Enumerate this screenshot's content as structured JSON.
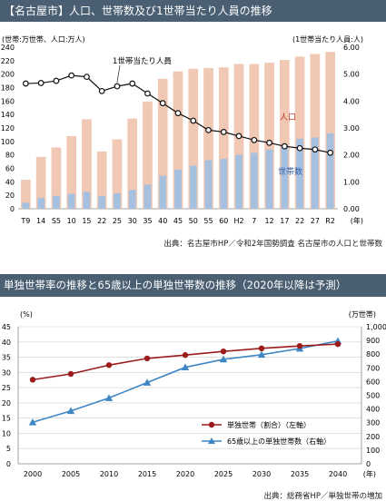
{
  "chart_data": [
    {
      "type": "bar",
      "title": "【名古屋市】人口、世帯数及び1世帯当たり人員の推移",
      "left_unit": "(世帯:万世帯、人口:万人)",
      "right_unit": "(1世帯当たり人員:人)",
      "x_unit": "(年)",
      "categories": [
        "T9",
        "14",
        "S5",
        "10",
        "15",
        "22",
        "25",
        "30",
        "35",
        "40",
        "45",
        "50",
        "55",
        "60",
        "H2",
        "7",
        "12",
        "17",
        "22",
        "27",
        "R2"
      ],
      "left_ylim": [
        0,
        240
      ],
      "left_ticks": [
        "0",
        "20",
        "40",
        "60",
        "80",
        "100",
        "120",
        "140",
        "160",
        "180",
        "200",
        "220",
        "240"
      ],
      "right_ylim": [
        0,
        6
      ],
      "right_ticks": [
        "0.00",
        "1.00",
        "2.00",
        "3.00",
        "4.00",
        "5.00",
        "6.00"
      ],
      "series": [
        {
          "name": "人口",
          "axis": "left",
          "kind": "bar",
          "color": "#f0c8b4",
          "values": [
            43,
            77,
            91,
            108,
            133,
            85,
            103,
            134,
            159,
            193,
            204,
            208,
            209,
            210,
            215,
            215,
            217,
            221,
            226,
            230,
            233
          ]
        },
        {
          "name": "世帯数",
          "axis": "left",
          "kind": "bar",
          "color": "#a6c0e0",
          "values": [
            9,
            16,
            19,
            22,
            25,
            19,
            23,
            28,
            36,
            49,
            58,
            64,
            72,
            74,
            80,
            83,
            88,
            95,
            104,
            106,
            112
          ]
        },
        {
          "name": "1世帯当たり人員",
          "axis": "right",
          "kind": "line",
          "color": "#111111",
          "values": [
            4.65,
            4.67,
            4.75,
            4.95,
            4.9,
            4.37,
            4.55,
            4.65,
            4.28,
            3.92,
            3.55,
            3.27,
            2.92,
            2.85,
            2.7,
            2.55,
            2.45,
            2.32,
            2.25,
            2.2,
            2.08
          ]
        }
      ],
      "source": "出典：名古屋市HP／令和2年国勢調査 名古屋市の人口と世帯数"
    },
    {
      "type": "line",
      "title": "単独世帯率の推移と65歳以上の単独世帯数の推移（2020年以降は予測）",
      "left_unit": "(%)",
      "right_unit": "(万世帯)",
      "x_unit": "(年)",
      "categories": [
        "2000",
        "2005",
        "2010",
        "2015",
        "2020",
        "2025",
        "2030",
        "2035",
        "2040"
      ],
      "left_ylim": [
        0,
        45
      ],
      "left_ticks": [
        "0",
        "5",
        "10",
        "15",
        "20",
        "25",
        "30",
        "35",
        "40",
        "45"
      ],
      "right_ylim": [
        0,
        1000
      ],
      "right_ticks": [
        "0",
        "100",
        "200",
        "300",
        "400",
        "500",
        "600",
        "700",
        "800",
        "900",
        "1,000"
      ],
      "series": [
        {
          "name": "単独世帯（割合）（左軸）",
          "axis": "left",
          "color": "#9c1c1c",
          "marker": "circle",
          "values": [
            27.6,
            29.5,
            32.4,
            34.6,
            35.7,
            36.9,
            37.9,
            38.7,
            39.3
          ]
        },
        {
          "name": "65歳以上の単独世帯数（右軸）",
          "axis": "right",
          "color": "#3f86c4",
          "marker": "triangle",
          "values": [
            303,
            386,
            480,
            593,
            704,
            762,
            796,
            841,
            896
          ]
        }
      ],
      "source": "出典：総務省HP／単独世帯の増加"
    }
  ]
}
